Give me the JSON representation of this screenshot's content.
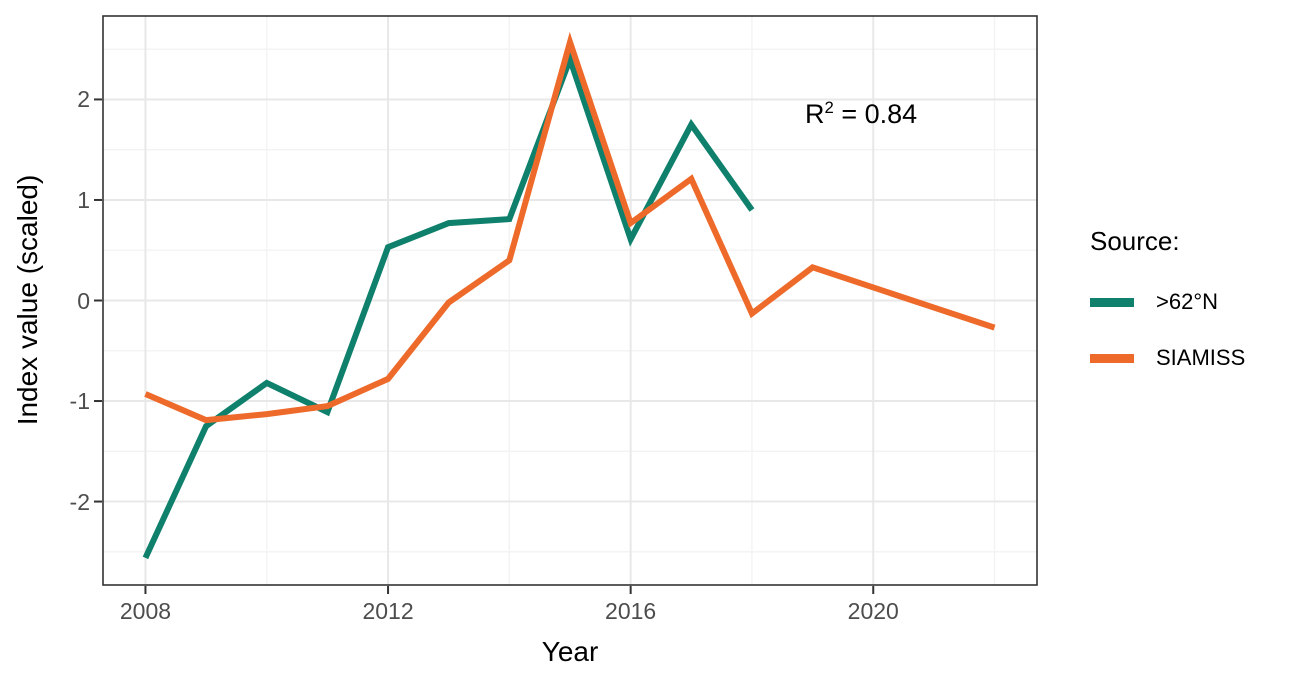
{
  "chart_data": {
    "type": "line",
    "title": "",
    "xlabel": "Year",
    "ylabel": "Index value (scaled)",
    "xlim": [
      2007.3,
      2022.7
    ],
    "ylim": [
      -2.83,
      2.83
    ],
    "grid": true,
    "legend_position": "right",
    "legend_title": "Source:",
    "x_ticks": [
      {
        "value": 2008,
        "label": "2008"
      },
      {
        "value": 2012,
        "label": "2012"
      },
      {
        "value": 2016,
        "label": "2016"
      },
      {
        "value": 2020,
        "label": "2020"
      }
    ],
    "y_ticks": [
      {
        "value": 2,
        "label": "2"
      },
      {
        "value": 1,
        "label": "1"
      },
      {
        "value": 0,
        "label": "0"
      },
      {
        "value": -1,
        "label": "-1"
      },
      {
        "value": -2,
        "label": "-2"
      }
    ],
    "x_minor_gridlines": [
      2010,
      2014,
      2018,
      2022
    ],
    "y_minor_gridlines": [
      2.5,
      1.5,
      0.5,
      -0.5,
      -1.5,
      -2.5
    ],
    "annotation": {
      "base": "R",
      "sup": "2",
      "rest": " = 0.84",
      "x": 2019.8,
      "y": 1.86
    },
    "series": [
      {
        "name": ">62°N",
        "color": "#0E806C",
        "x": [
          2008,
          2009,
          2010,
          2011,
          2012,
          2013,
          2014,
          2015,
          2016,
          2017,
          2018
        ],
        "values": [
          -2.56,
          -1.25,
          -0.82,
          -1.11,
          0.53,
          0.77,
          0.81,
          2.4,
          0.61,
          1.75,
          0.9
        ]
      },
      {
        "name": "SIAMISS",
        "color": "#EE6A2A",
        "x": [
          2008,
          2009,
          2010,
          2011,
          2012,
          2013,
          2014,
          2015,
          2016,
          2017,
          2018,
          2019,
          2020,
          2021,
          2022
        ],
        "values": [
          -0.93,
          -1.19,
          -1.13,
          -1.05,
          -0.78,
          -0.02,
          0.4,
          2.57,
          0.77,
          1.21,
          -0.13,
          0.33,
          0.13,
          -0.07,
          -0.27
        ]
      }
    ],
    "colors": {
      "grid_major": "#E8E8E8",
      "grid_minor": "#F3F3F3",
      "panel_border": "#333333",
      "tick_mark": "#333333",
      "tick_label": "#4D4D4D",
      "axis_title": "#000000",
      "annotation": "#000000",
      "background": "#FFFFFF"
    }
  }
}
